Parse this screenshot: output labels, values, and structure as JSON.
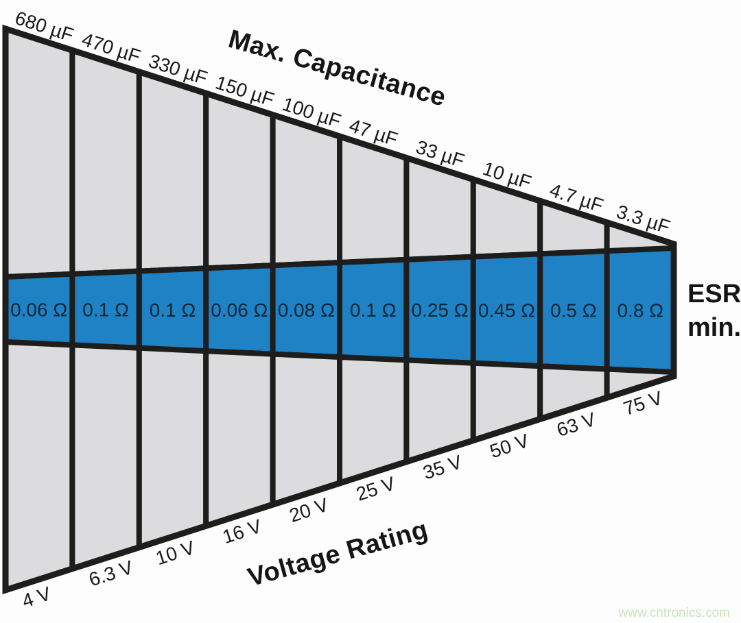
{
  "titles": {
    "top": "Max. Capacitance",
    "bottom": "Voltage Rating"
  },
  "esr_axis": {
    "line1": "ESR",
    "line2": "min."
  },
  "watermark": "www.cntronics.com",
  "colors": {
    "band_blue": "#1e82c5",
    "cell_gray": "#dcdcde",
    "line_black": "#1d1d1b",
    "watermark_green": "#c9e4bc",
    "background": "#fdfdfd"
  },
  "chart_data": {
    "type": "table",
    "title": "Max. Capacitance vs Voltage Rating vs minimum ESR",
    "top_axis_label": "Max. Capacitance",
    "bottom_axis_label": "Voltage Rating",
    "band_label": "ESR min.",
    "columns": [
      {
        "capacitance": "680 µF",
        "voltage": "4 V",
        "esr": "0.06 Ω"
      },
      {
        "capacitance": "470 µF",
        "voltage": "6.3 V",
        "esr": "0.1 Ω"
      },
      {
        "capacitance": "330 µF",
        "voltage": "10 V",
        "esr": "0.1 Ω"
      },
      {
        "capacitance": "150 µF",
        "voltage": "16 V",
        "esr": "0.06 Ω"
      },
      {
        "capacitance": "100 µF",
        "voltage": "20 V",
        "esr": "0.08 Ω"
      },
      {
        "capacitance": "47 µF",
        "voltage": "25 V",
        "esr": "0.1 Ω"
      },
      {
        "capacitance": "33 µF",
        "voltage": "35 V",
        "esr": "0.25 Ω"
      },
      {
        "capacitance": "10 µF",
        "voltage": "50 V",
        "esr": "0.45 Ω"
      },
      {
        "capacitance": "4.7 µF",
        "voltage": "63 V",
        "esr": "0.5 Ω"
      },
      {
        "capacitance": "3.3 µF",
        "voltage": "75 V",
        "esr": "0.8 Ω"
      }
    ]
  }
}
